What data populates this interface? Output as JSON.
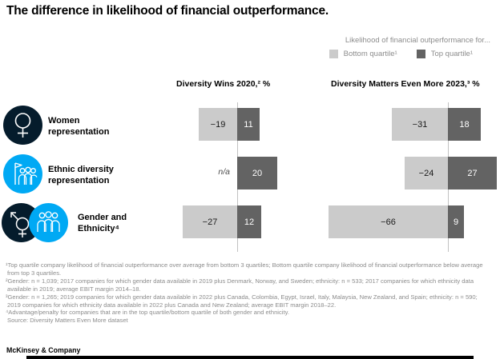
{
  "title": "The difference in likelihood of financial outperformance.",
  "legend": {
    "caption": "Likelihood of financial outperformance for...",
    "items": [
      {
        "label": "Bottom quartile¹",
        "color": "#cbcbcb"
      },
      {
        "label": "Top quartile¹",
        "color": "#636363"
      }
    ]
  },
  "rows": [
    {
      "label": "Women representation",
      "icons": [
        "female-symbol-icon"
      ]
    },
    {
      "label": "Ethnic diversity representation",
      "icons": [
        "people-group-flag-icon"
      ]
    },
    {
      "label": "Gender and Ethnicity⁴",
      "icons": [
        "gender-symbol-icon",
        "people-group-icon"
      ]
    }
  ],
  "chart_data": {
    "type": "bar",
    "orientation": "horizontal-diverging",
    "unit": "%",
    "categories": [
      "Women representation",
      "Ethnic diversity representation",
      "Gender and Ethnicity⁴"
    ],
    "legend_position": "top-right",
    "panels": [
      {
        "title": "Diversity Wins 2020,² %",
        "series": [
          {
            "name": "Bottom quartile",
            "values": [
              -19,
              null,
              -27
            ],
            "display": [
              "−19",
              "n/a",
              "−27"
            ]
          },
          {
            "name": "Top quartile",
            "values": [
              11,
              20,
              12
            ],
            "display": [
              "11",
              "20",
              "12"
            ]
          }
        ]
      },
      {
        "title": "Diversity Matters Even More 2023,³ %",
        "series": [
          {
            "name": "Bottom quartile",
            "values": [
              -31,
              -24,
              -66
            ],
            "display": [
              "−31",
              "−24",
              "−66"
            ]
          },
          {
            "name": "Top quartile",
            "values": [
              18,
              27,
              9
            ],
            "display": [
              "18",
              "27",
              "9"
            ]
          }
        ]
      }
    ]
  },
  "footnotes": [
    "¹Top quartile company likelihood of financial outperformance over average from bottom 3 quartiles; Bottom quartile company likelihood of financial outperformance below average from top 3 quartiles.",
    "²Gender: n = 1,039; 2017 companies for which gender data available in 2019 plus Denmark, Norway, and Sweden; ethnicity: n = 533; 2017 companies for which ethnicity data available in 2019; average EBIT margin 2014–18.",
    "³Gender: n = 1,265; 2019 companies for which gender data available in 2022 plus Canada, Colombia, Egypt, Israel, Italy, Malaysia, New Zealand, and Spain; ethnicity: n = 590; 2019 companies for which ethnicity data available in 2022 plus Canada and New Zealand; average EBIT margin 2018–22.",
    "⁴Advantage/penalty for companies that are in the top quartile/bottom quartile of both gender and ethnicity."
  ],
  "source": "Source: Diversity Matters Even More dataset",
  "brand": "McKinsey & Company",
  "colors": {
    "bar_light": "#cbcbcb",
    "bar_dark": "#636363",
    "navy": "#051c2c",
    "cyan": "#00a9f4",
    "text_muted": "#8c8c8c"
  }
}
